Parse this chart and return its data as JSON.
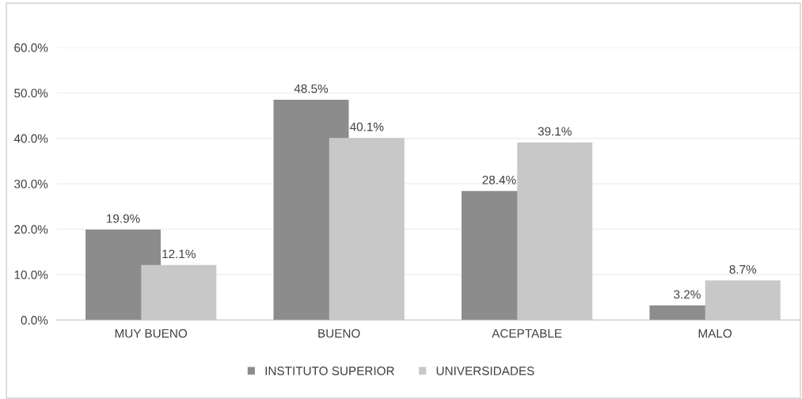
{
  "chart_data": {
    "type": "bar",
    "categories": [
      "MUY BUENO",
      "BUENO",
      "ACEPTABLE",
      "MALO"
    ],
    "series": [
      {
        "name": "INSTITUTO SUPERIOR",
        "color": "#8c8c8c",
        "values": [
          19.9,
          48.5,
          28.4,
          3.2
        ]
      },
      {
        "name": "UNIVERSIDADES",
        "color": "#c8c8c8",
        "values": [
          12.1,
          40.1,
          39.1,
          8.7
        ]
      }
    ],
    "ylim": [
      0,
      60
    ],
    "yticks": [
      {
        "value": 0,
        "label": "0.0%"
      },
      {
        "value": 10,
        "label": "10.0%"
      },
      {
        "value": 20,
        "label": "20.0%"
      },
      {
        "value": 30,
        "label": "30.0%"
      },
      {
        "value": 40,
        "label": "40.0%"
      },
      {
        "value": 50,
        "label": "50.0%"
      },
      {
        "value": 60,
        "label": "60.0%"
      }
    ],
    "value_labels": [
      [
        "19.9%",
        "48.5%",
        "28.4%",
        "3.2%"
      ],
      [
        "12.1%",
        "40.1%",
        "39.1%",
        "8.7%"
      ]
    ],
    "grid": "y",
    "legend": "bottom"
  }
}
